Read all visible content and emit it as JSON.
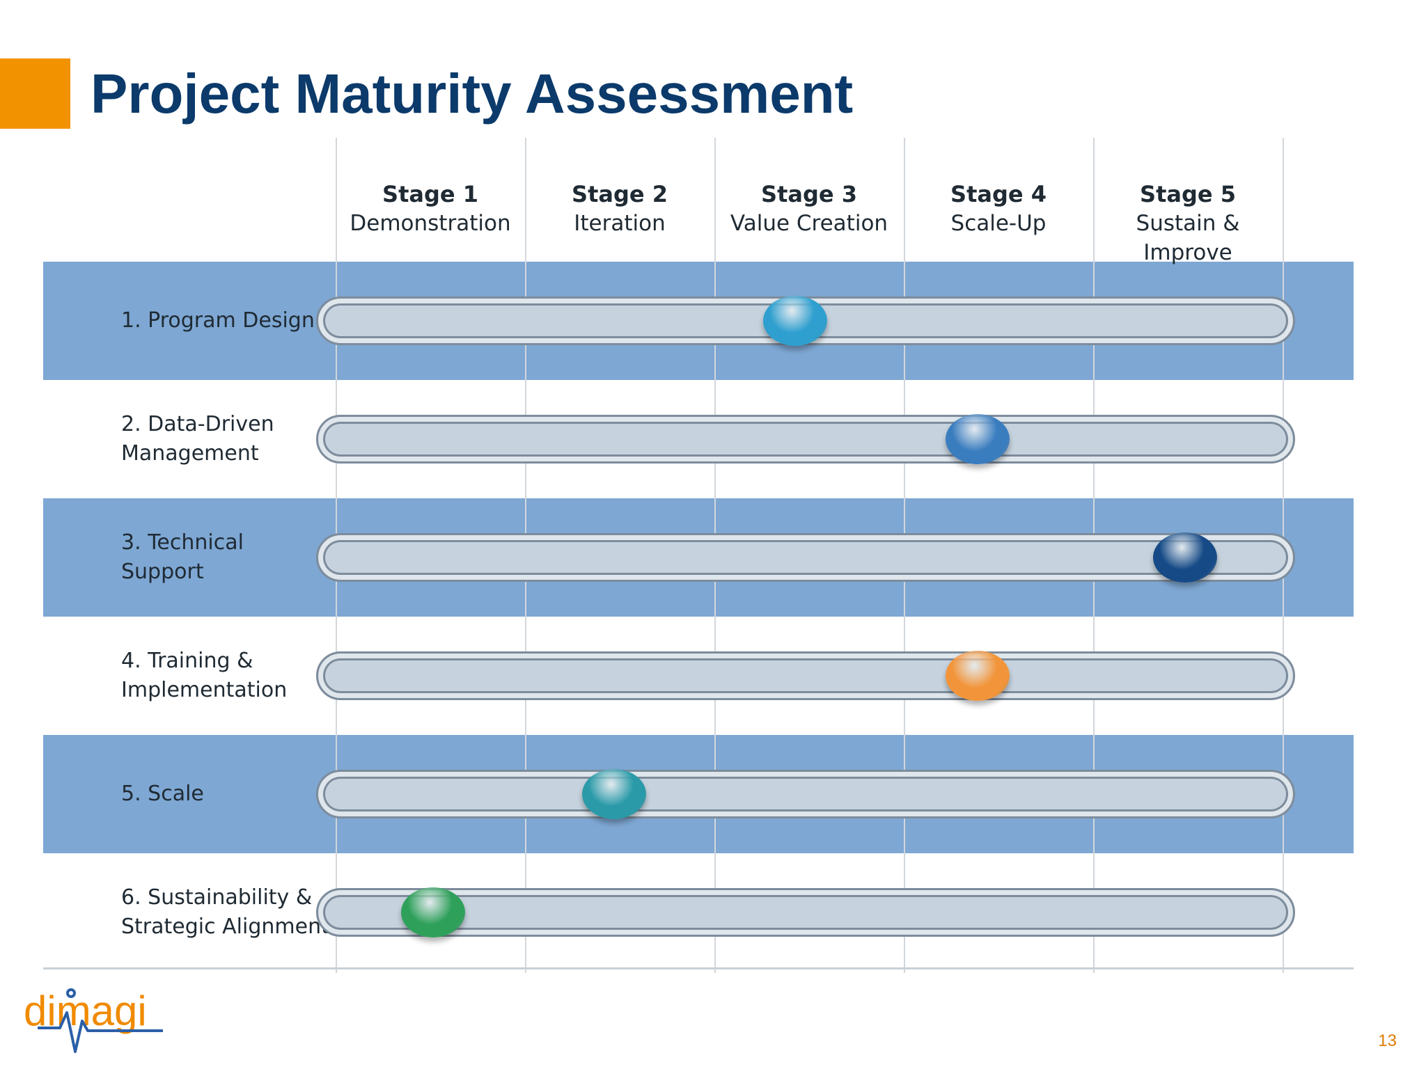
{
  "slide": {
    "title": "Project Maturity Assessment",
    "page_number": "13",
    "accent_color": "#f39200",
    "title_color": "#0b3a6b"
  },
  "stages": [
    {
      "number": "Stage 1",
      "name": "Demonstration"
    },
    {
      "number": "Stage 2",
      "name": "Iteration"
    },
    {
      "number": "Stage 3",
      "name": "Value Creation"
    },
    {
      "number": "Stage 4",
      "name": "Scale-Up"
    },
    {
      "number": "Stage 5",
      "name": "Sustain & Improve"
    }
  ],
  "rows": [
    {
      "label": "1. Program Design",
      "stage": 3,
      "marker_color": "#2e9fcf"
    },
    {
      "label": "2. Data-Driven\nManagement",
      "stage": 4,
      "marker_color": "#3a7dbf"
    },
    {
      "label": "3. Technical\nSupport",
      "stage": 5,
      "marker_color": "#154a86"
    },
    {
      "label": "4. Training &\nImplementation",
      "stage": 4,
      "marker_color": "#f2953a"
    },
    {
      "label": "5. Scale",
      "stage": 2,
      "marker_color": "#2a9aa8"
    },
    {
      "label": "6. Sustainability &\nStrategic Alignment",
      "stage": 1,
      "marker_color": "#2ea05a"
    }
  ],
  "logo": {
    "text": "dimagi",
    "icon": "dimagi-logo-icon",
    "colors": {
      "text": "#f08a00",
      "pulse": "#2b5fa8"
    }
  }
}
